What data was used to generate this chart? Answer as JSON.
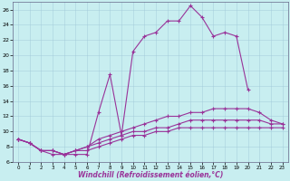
{
  "xlabel": "Windchill (Refroidissement éolien,°C)",
  "background_color": "#c8eef0",
  "line_color": "#993399",
  "xlim": [
    -0.5,
    23.5
  ],
  "ylim": [
    6,
    27
  ],
  "yticks": [
    6,
    8,
    10,
    12,
    14,
    16,
    18,
    20,
    22,
    24,
    26
  ],
  "xticks": [
    0,
    1,
    2,
    3,
    4,
    5,
    6,
    7,
    8,
    9,
    10,
    11,
    12,
    13,
    14,
    15,
    16,
    17,
    18,
    19,
    20,
    21,
    22,
    23
  ],
  "series": [
    {
      "x": [
        0,
        1,
        2,
        3,
        4,
        5,
        6,
        7,
        8,
        9,
        10,
        11,
        12,
        13,
        14,
        15,
        16,
        17,
        18,
        19,
        20
      ],
      "y": [
        9.0,
        8.5,
        7.5,
        7.0,
        7.0,
        7.0,
        7.0,
        12.5,
        17.5,
        9.5,
        20.5,
        22.5,
        23.0,
        24.5,
        24.5,
        26.5,
        25.0,
        22.5,
        23.0,
        22.5,
        15.5
      ]
    },
    {
      "x": [
        0,
        1,
        2,
        3,
        4,
        5,
        6,
        7,
        8,
        9,
        10,
        11,
        12,
        13,
        14,
        15,
        16,
        17,
        18,
        19,
        20,
        21,
        22,
        23
      ],
      "y": [
        9.0,
        8.5,
        7.5,
        7.5,
        7.0,
        7.5,
        8.0,
        9.0,
        9.5,
        10.0,
        10.5,
        11.0,
        11.5,
        12.0,
        12.0,
        12.5,
        12.5,
        13.0,
        13.0,
        13.0,
        13.0,
        12.5,
        11.5,
        11.0
      ]
    },
    {
      "x": [
        0,
        1,
        2,
        3,
        4,
        5,
        6,
        7,
        8,
        9,
        10,
        11,
        12,
        13,
        14,
        15,
        16,
        17,
        18,
        19,
        20,
        21,
        22,
        23
      ],
      "y": [
        9.0,
        8.5,
        7.5,
        7.5,
        7.0,
        7.5,
        8.0,
        8.5,
        9.0,
        9.5,
        10.0,
        10.0,
        10.5,
        10.5,
        11.0,
        11.5,
        11.5,
        11.5,
        11.5,
        11.5,
        11.5,
        11.5,
        11.0,
        11.0
      ]
    },
    {
      "x": [
        0,
        1,
        2,
        3,
        4,
        5,
        6,
        7,
        8,
        9,
        10,
        11,
        12,
        13,
        14,
        15,
        16,
        17,
        18,
        19,
        20,
        21,
        22,
        23
      ],
      "y": [
        9.0,
        8.5,
        7.5,
        7.5,
        7.0,
        7.5,
        7.5,
        8.0,
        8.5,
        9.0,
        9.5,
        9.5,
        10.0,
        10.0,
        10.5,
        10.5,
        10.5,
        10.5,
        10.5,
        10.5,
        10.5,
        10.5,
        10.5,
        10.5
      ]
    }
  ]
}
